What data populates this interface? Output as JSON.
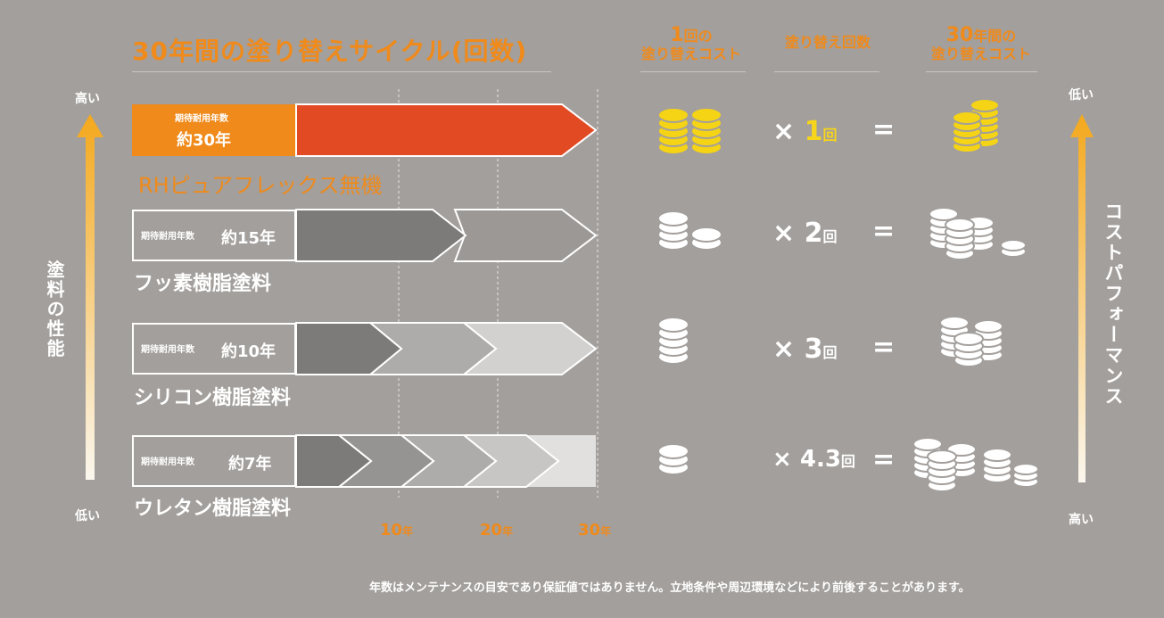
{
  "title": "30年間の塗り替えサイクル(回数)",
  "col_headers": {
    "unit_cost_num": "1",
    "unit_cost_line1": "回の",
    "unit_cost_line2": "塗り替えコスト",
    "count": "塗り替え回数",
    "total_num": "30",
    "total_line1": "年間の",
    "total_line2": "塗り替えコスト"
  },
  "left_axis": {
    "label": "塗料の性能",
    "top": "高い",
    "bottom": "低い"
  },
  "right_axis": {
    "label": "コストパフォーマンス",
    "top": "低い",
    "bottom": "高い"
  },
  "life_label": "期待耐用年数",
  "paints": [
    {
      "name": "RHピュアフレックス無機",
      "life": "約30年",
      "times": "1",
      "times_unit": "回"
    },
    {
      "name": "フッ素樹脂塗料",
      "life": "約15年",
      "times": "2",
      "times_unit": "回"
    },
    {
      "name": "シリコン樹脂塗料",
      "life": "約10年",
      "times": "3",
      "times_unit": "回"
    },
    {
      "name": "ウレタン樹脂塗料",
      "life": "約7年",
      "times": "4.3",
      "times_unit": "回"
    }
  ],
  "times_sign": "×",
  "equals": "=",
  "years": [
    {
      "num": "10",
      "unit": "年"
    },
    {
      "num": "20",
      "unit": "年"
    },
    {
      "num": "30",
      "unit": "年"
    }
  ],
  "note": "年数はメンテナンスの目安であり保証値ではありません。立地条件や周辺環境などにより前後することがあります。",
  "colors": {
    "accent_orange": "#ef8a1b",
    "accent_red": "#e24a24",
    "coin_yellow": "#f5d315",
    "background": "#a39f9c"
  },
  "icons": [
    "coin-stack-icon",
    "up-arrow-icon"
  ]
}
